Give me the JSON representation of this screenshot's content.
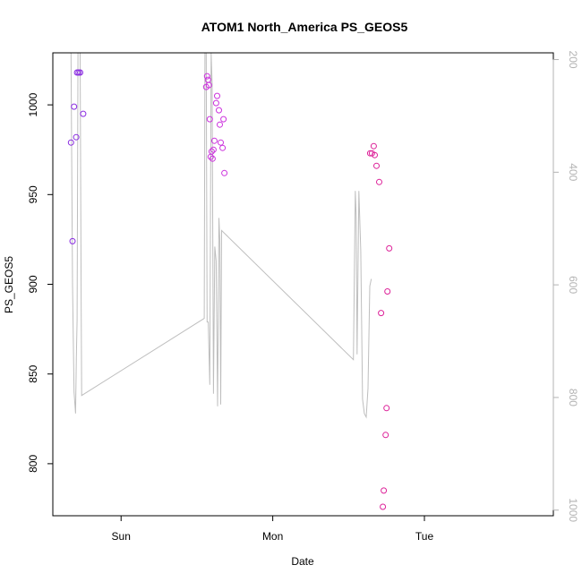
{
  "chart_data": {
    "type": "scatter",
    "title": "ATOM1 North_America PS_GEOS5",
    "xlabel": "Date",
    "ylabel": "PS_GEOS5",
    "xlim": [
      -0.45,
      2.85
    ],
    "ylim": [
      771,
      1029
    ],
    "y_ticks": [
      800,
      850,
      900,
      950,
      1000
    ],
    "x_ticks": [
      {
        "value": 0,
        "label": "Sun"
      },
      {
        "value": 1,
        "label": "Mon"
      },
      {
        "value": 2,
        "label": "Tue"
      }
    ],
    "right_axis": {
      "color": "#b3b3b3",
      "ticks": [
        200,
        400,
        600,
        800,
        1000
      ],
      "lim": [
        1010,
        188
      ]
    },
    "line_color": "#bebebe",
    "points": [
      {
        "x": -0.33,
        "y": 979,
        "color": "#8a2be2"
      },
      {
        "x": -0.32,
        "y": 924,
        "color": "#8a2be2"
      },
      {
        "x": -0.31,
        "y": 999,
        "color": "#8a2be2"
      },
      {
        "x": -0.296,
        "y": 982,
        "color": "#8a2be2"
      },
      {
        "x": -0.29,
        "y": 1018,
        "color": "#8a2be2"
      },
      {
        "x": -0.28,
        "y": 1018,
        "color": "#8a2be2"
      },
      {
        "x": -0.27,
        "y": 1018,
        "color": "#8a2be2"
      },
      {
        "x": -0.25,
        "y": 995,
        "color": "#8a2be2"
      },
      {
        "x": 0.561,
        "y": 1010,
        "color": "#cc33dd"
      },
      {
        "x": 0.567,
        "y": 1016,
        "color": "#cc33dd"
      },
      {
        "x": 0.573,
        "y": 1014,
        "color": "#cc33dd"
      },
      {
        "x": 0.579,
        "y": 1011,
        "color": "#cc33dd"
      },
      {
        "x": 0.585,
        "y": 992,
        "color": "#cc33dd"
      },
      {
        "x": 0.591,
        "y": 971,
        "color": "#cc33dd"
      },
      {
        "x": 0.597,
        "y": 974,
        "color": "#cc33dd"
      },
      {
        "x": 0.603,
        "y": 970,
        "color": "#cc33dd"
      },
      {
        "x": 0.609,
        "y": 975,
        "color": "#cc33dd"
      },
      {
        "x": 0.615,
        "y": 980,
        "color": "#cc33dd"
      },
      {
        "x": 0.627,
        "y": 1001,
        "color": "#cc33dd"
      },
      {
        "x": 0.633,
        "y": 1005,
        "color": "#cc33dd"
      },
      {
        "x": 0.645,
        "y": 997,
        "color": "#cc33dd"
      },
      {
        "x": 0.651,
        "y": 989,
        "color": "#cc33dd"
      },
      {
        "x": 0.657,
        "y": 979,
        "color": "#cc33dd"
      },
      {
        "x": 0.669,
        "y": 976,
        "color": "#cc33dd"
      },
      {
        "x": 0.675,
        "y": 992,
        "color": "#cc33dd"
      },
      {
        "x": 0.681,
        "y": 962,
        "color": "#cc33dd"
      },
      {
        "x": 1.642,
        "y": 973,
        "color": "#dd2299"
      },
      {
        "x": 1.654,
        "y": 973,
        "color": "#dd2299"
      },
      {
        "x": 1.666,
        "y": 977,
        "color": "#dd2299"
      },
      {
        "x": 1.672,
        "y": 972,
        "color": "#dd2299"
      },
      {
        "x": 1.684,
        "y": 966,
        "color": "#dd2299"
      },
      {
        "x": 1.702,
        "y": 957,
        "color": "#dd2299"
      },
      {
        "x": 1.714,
        "y": 884,
        "color": "#dd2299"
      },
      {
        "x": 1.726,
        "y": 776,
        "color": "#dd2299"
      },
      {
        "x": 1.732,
        "y": 785,
        "color": "#dd2299"
      },
      {
        "x": 1.744,
        "y": 816,
        "color": "#dd2299"
      },
      {
        "x": 1.75,
        "y": 831,
        "color": "#dd2299"
      },
      {
        "x": 1.756,
        "y": 896,
        "color": "#dd2299"
      },
      {
        "x": 1.768,
        "y": 920,
        "color": "#dd2299"
      }
    ],
    "line": [
      [
        -0.33,
        1029
      ],
      [
        -0.32,
        900
      ],
      [
        -0.31,
        840
      ],
      [
        -0.3,
        828
      ],
      [
        -0.295,
        860
      ],
      [
        -0.29,
        880
      ],
      [
        -0.284,
        1029
      ],
      [
        -0.27,
        1029
      ],
      [
        -0.263,
        885
      ],
      [
        -0.26,
        838
      ],
      [
        0.548,
        881
      ],
      [
        0.553,
        1029
      ],
      [
        0.561,
        1029
      ],
      [
        0.567,
        879
      ],
      [
        0.575,
        879
      ],
      [
        0.585,
        844
      ],
      [
        0.594,
        1029
      ],
      [
        0.6,
        1012
      ],
      [
        0.609,
        839
      ],
      [
        0.618,
        921
      ],
      [
        0.627,
        913
      ],
      [
        0.636,
        832
      ],
      [
        0.645,
        937
      ],
      [
        0.651,
        925
      ],
      [
        0.657,
        833
      ],
      [
        0.663,
        930
      ],
      [
        1.532,
        858
      ],
      [
        1.544,
        952
      ],
      [
        1.55,
        938
      ],
      [
        1.556,
        861
      ],
      [
        1.568,
        952
      ],
      [
        1.58,
        919
      ],
      [
        1.592,
        836
      ],
      [
        1.604,
        828
      ],
      [
        1.616,
        826
      ],
      [
        1.628,
        842
      ],
      [
        1.64,
        899
      ],
      [
        1.65,
        903
      ]
    ]
  }
}
